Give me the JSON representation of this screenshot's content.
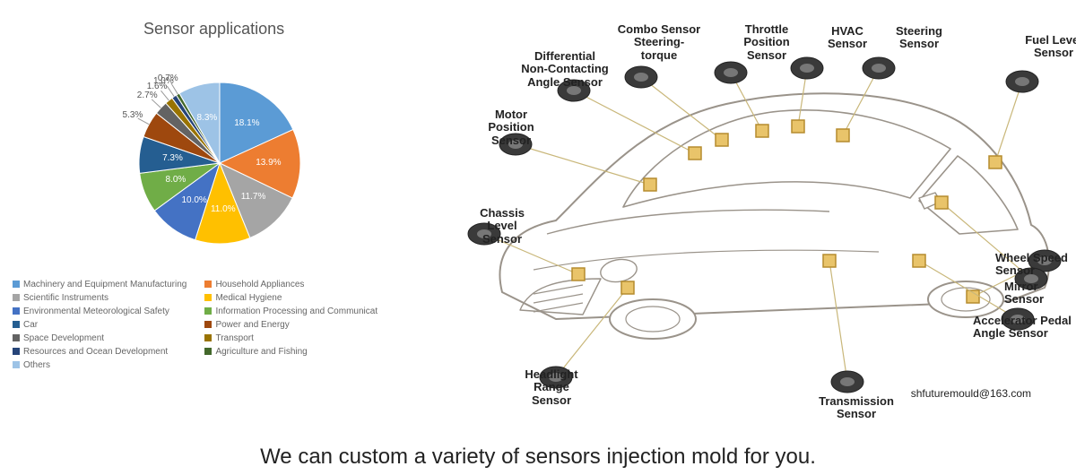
{
  "chart": {
    "title": "Sensor applications",
    "type": "pie",
    "title_fontsize": 18,
    "label_fontsize": 10,
    "background_color": "#ffffff",
    "slices": [
      {
        "label": "Machinery and Equipment Manufacturing",
        "value": 18.1,
        "color": "#5b9bd5",
        "pct": "18.1%"
      },
      {
        "label": "Household Appliances",
        "value": 13.9,
        "color": "#ed7d31",
        "pct": "13.9%"
      },
      {
        "label": "Scientific Instruments",
        "value": 11.7,
        "color": "#a5a5a5",
        "pct": "11.7%"
      },
      {
        "label": "Medical Hygiene",
        "value": 11.0,
        "color": "#ffc000",
        "pct": "11.0%"
      },
      {
        "label": "Environmental Meteorological Safety",
        "value": 10.0,
        "color": "#4472c4",
        "pct": "10.0%"
      },
      {
        "label": "Information Processing and Communicat",
        "value": 8.0,
        "color": "#70ad47",
        "pct": "8.0%"
      },
      {
        "label": "Car",
        "value": 7.3,
        "color": "#255e91",
        "pct": "7.3%"
      },
      {
        "label": "Power and Energy",
        "value": 5.3,
        "color": "#9e480e",
        "pct": "5.3%"
      },
      {
        "label": "Space Development",
        "value": 2.7,
        "color": "#636363",
        "pct": "2.7%"
      },
      {
        "label": "Transport",
        "value": 1.6,
        "color": "#997300",
        "pct": "1.6%"
      },
      {
        "label": "Resources and Ocean Development",
        "value": 1.0,
        "color": "#264478",
        "pct": "1.0%"
      },
      {
        "label": "Agriculture and Fishing",
        "value": 0.7,
        "color": "#43682b",
        "pct": "0.7%"
      },
      {
        "label": "Others",
        "value": 8.3,
        "color": "#9dc3e6",
        "pct": "8.3%"
      }
    ]
  },
  "car": {
    "type": "infographic",
    "outline_color": "#9a938a",
    "marker_color": "#e9c46a",
    "marker_stroke": "#b58c2e",
    "line_color": "#c9b77a",
    "sensors": [
      "Differential\nNon-Contacting\nAngle Sensor",
      "Combo Sensor\nSteering-\ntorque",
      "Throttle\nPosition\nSensor",
      "HVAC\nSensor",
      "Steering\nSensor",
      "Fuel Level\nSensor",
      "Motor\nPosition\nSensor",
      "Chassis\nLevel\nSensor",
      "Wheel Speed\nSensor",
      "Mirror\nSensor",
      "Accelerator Pedal\nAngle Sensor",
      "Headlight\nRange\nSensor",
      "Transmission\nSensor"
    ],
    "contact": "shfuturemould@163.com"
  },
  "tagline": "We can custom a variety of sensors injection mold for you."
}
